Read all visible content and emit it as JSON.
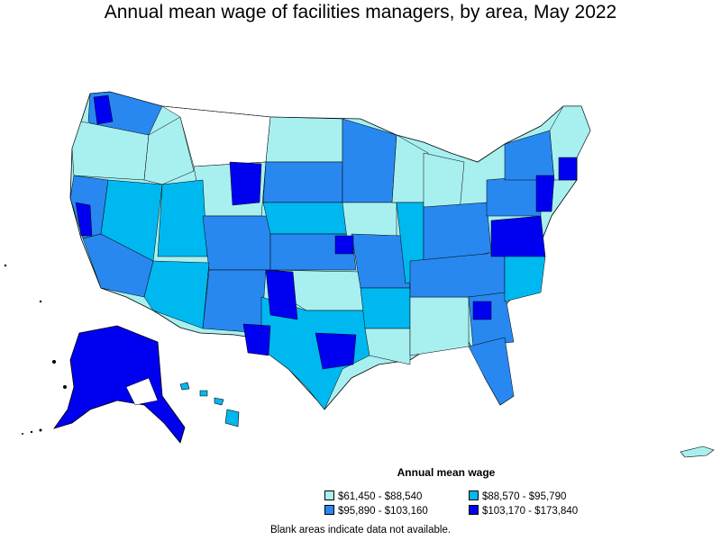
{
  "title": "Annual mean wage of facilities managers, by area, May 2022",
  "legend": {
    "title": "Annual mean wage",
    "items": [
      {
        "label": "$61,450 - $88,540",
        "color": "#a8f0f0"
      },
      {
        "label": "$88,570 - $95,790",
        "color": "#00b8f0"
      },
      {
        "label": "$95,890 - $103,160",
        "color": "#2888f0"
      },
      {
        "label": "$103,170 - $173,840",
        "color": "#0000f0"
      }
    ]
  },
  "note": "Blank areas indicate data not available.",
  "colors": {
    "tier1": "#a8f0f0",
    "tier2": "#00b8f0",
    "tier3": "#2888f0",
    "tier4": "#0000f0",
    "blank": "#ffffff",
    "border": "#000000"
  }
}
